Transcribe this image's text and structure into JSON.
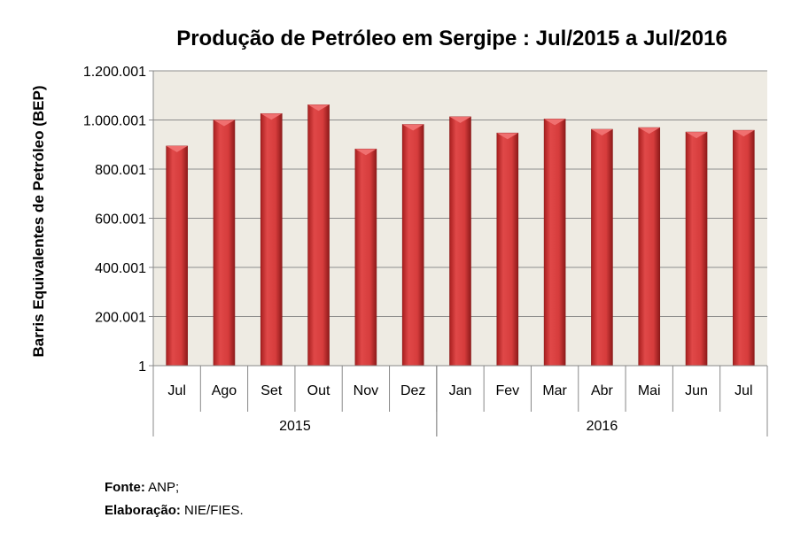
{
  "chart_data": {
    "type": "bar",
    "title": "Produção de Petróleo em Sergipe : Jul/2015 a Jul/2016",
    "ylabel": "Barris Equivalentes de Petróleo (BEP)",
    "xlabel": "",
    "categories": [
      "Jul",
      "Ago",
      "Set",
      "Out",
      "Nov",
      "Dez",
      "Jan",
      "Fev",
      "Mar",
      "Abr",
      "Mai",
      "Jun",
      "Jul"
    ],
    "groups": [
      {
        "label": "2015",
        "count": 6
      },
      {
        "label": "2016",
        "count": 7
      }
    ],
    "values": [
      894000,
      1000000,
      1026000,
      1062000,
      882000,
      982000,
      1013000,
      947000,
      1004000,
      962000,
      969000,
      951000,
      958000
    ],
    "ylim": [
      1,
      1200001
    ],
    "yticks": [
      1,
      200001,
      400001,
      600001,
      800001,
      1000001,
      1200001
    ],
    "ytick_labels": [
      "1",
      "200.001",
      "400.001",
      "600.001",
      "800.001",
      "1.000.001",
      "1.200.001"
    ],
    "grid": true,
    "colors": {
      "bar": "#d63c3c",
      "plot_bg": "#eeebe3",
      "grid": "#8c8c8c"
    }
  },
  "footer": {
    "fonte_label": "Fonte:",
    "fonte_value": " ANP;",
    "elab_label": "Elaboração:",
    "elab_value": " NIE/FIES."
  }
}
